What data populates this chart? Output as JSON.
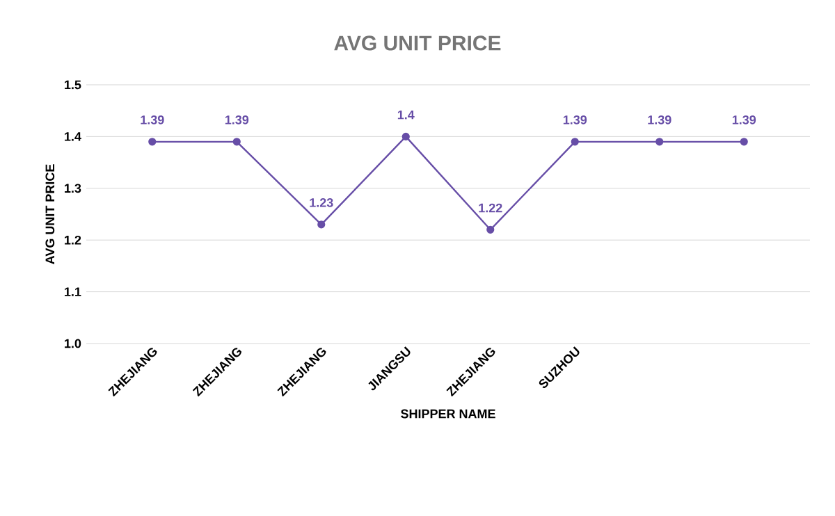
{
  "chart_data": {
    "type": "line",
    "title": "AVG UNIT PRICE",
    "xlabel": "SHIPPER NAME",
    "ylabel": "AVG UNIT PRICE",
    "categories": [
      "ZHEJIANG",
      "ZHEJIANG",
      "ZHEJIANG",
      "JIANGSU",
      "ZHEJIANG",
      "SUZHOU",
      null,
      null
    ],
    "values": [
      1.39,
      1.39,
      1.23,
      1.4,
      1.22,
      1.39,
      1.39,
      1.39
    ],
    "color": "#674ea7",
    "marker": "circle",
    "data_labels": true,
    "grid": "y",
    "ylim": [
      1.0,
      1.5
    ],
    "yticks": [
      {
        "value": 1.0,
        "label": "1.0"
      },
      1.1,
      1.2,
      1.3,
      1.4,
      1.5
    ]
  }
}
